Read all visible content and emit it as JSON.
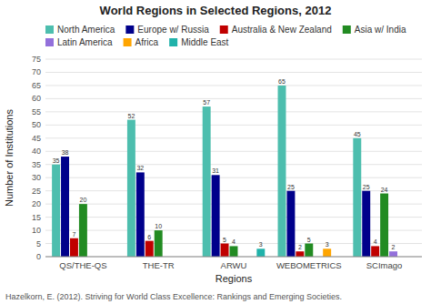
{
  "chart_data": {
    "type": "bar",
    "title": "World Regions in Selected Regions, 2012",
    "xlabel": "Regions",
    "ylabel": "Number of Institutions",
    "categories": [
      "QS/THE-QS",
      "THE-TR",
      "ARWU",
      "WEBOMETRICS",
      "SCImago"
    ],
    "series": [
      {
        "name": "North America",
        "color": "#4DBEAE",
        "values": [
          35,
          52,
          57,
          65,
          45
        ]
      },
      {
        "name": "Europe w/ Russia",
        "color": "#00008B",
        "values": [
          38,
          32,
          31,
          25,
          25
        ]
      },
      {
        "name": "Australia & New Zealand",
        "color": "#C00000",
        "values": [
          7,
          6,
          5,
          2,
          4
        ]
      },
      {
        "name": "Asia w/ India",
        "color": "#228B22",
        "values": [
          20,
          10,
          4,
          5,
          24
        ]
      },
      {
        "name": "Latin America",
        "color": "#9370DB",
        "values": [
          0,
          0,
          0,
          0,
          2
        ]
      },
      {
        "name": "Africa",
        "color": "#FFA500",
        "values": [
          0,
          0,
          0,
          3,
          0
        ]
      },
      {
        "name": "Middle East",
        "color": "#20B2AA",
        "values": [
          0,
          0,
          3,
          0,
          0
        ]
      }
    ],
    "ylim": [
      0,
      75
    ],
    "yticks": [
      0,
      5,
      10,
      15,
      20,
      25,
      30,
      35,
      40,
      45,
      50,
      55,
      60,
      65,
      70,
      75
    ],
    "grid": true,
    "legend": "top",
    "data_labels": true,
    "annotations": [
      "Hazelkorn, E. (2012). Striving for World Class Excellence: Rankings and Emerging Societies."
    ]
  }
}
